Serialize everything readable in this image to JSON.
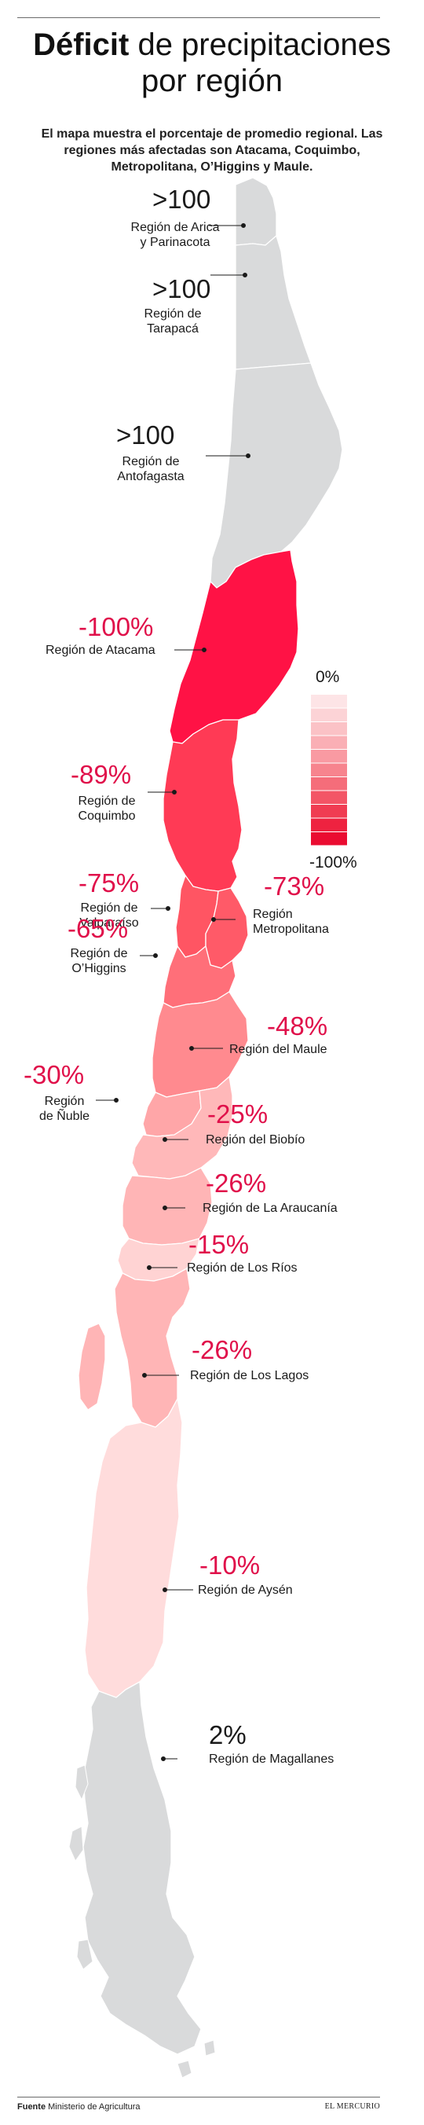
{
  "header": {
    "title_bold": "Déficit",
    "title_rest": " de precipitaciones",
    "title_line2": "por región",
    "intro": "El mapa muestra el porcentaje de promedio regional. Las regiones más afectadas son Atacama, Coquimbo, Metropolitana, O’Higgins y Maule."
  },
  "colors": {
    "gray": "#d9dadb",
    "red_100": "#ff1245",
    "red_89": "#ff3a55",
    "red_75": "#ff5563",
    "red_73": "#ff5a68",
    "red_65": "#ff6f79",
    "red_48": "#ff8a8f",
    "red_30": "#ffa6a8",
    "red_26": "#ffb5b6",
    "red_25": "#ffb8b9",
    "red_15": "#ffd3d3",
    "red_10": "#ffdcdc",
    "accent_text": "#e0104a"
  },
  "legend": {
    "top_label": "0%",
    "bottom_label": "-100%",
    "steps": [
      "#fde4e6",
      "#fcd3d6",
      "#fbc2c6",
      "#faafb5",
      "#f99aa2",
      "#f7848e",
      "#f56d7a",
      "#f35566",
      "#f03c52",
      "#ee2240",
      "#ea0c31"
    ]
  },
  "regions": [
    {
      "id": "arica",
      "value": ">100",
      "name_lines": [
        "Región de Arica",
        "y Parinacota"
      ]
    },
    {
      "id": "tarapaca",
      "value": ">100",
      "name_lines": [
        "Región de",
        "Tarapacá"
      ]
    },
    {
      "id": "antofagasta",
      "value": ">100",
      "name_lines": [
        "Región de",
        "Antofagasta"
      ]
    },
    {
      "id": "atacama",
      "value": "-100%",
      "name_lines": [
        "Región de Atacama"
      ]
    },
    {
      "id": "coquimbo",
      "value": "-89%",
      "name_lines": [
        "Región de",
        "Coquimbo"
      ]
    },
    {
      "id": "valparaiso",
      "value": "-75%",
      "name_lines": [
        "Región de",
        "Valparaíso"
      ]
    },
    {
      "id": "metropolitana",
      "value": "-73%",
      "name_lines": [
        "Región",
        "Metropolitana"
      ]
    },
    {
      "id": "ohiggins",
      "value": "-65%",
      "name_lines": [
        "Región de",
        "O’Higgins"
      ]
    },
    {
      "id": "maule",
      "value": "-48%",
      "name_lines": [
        "Región del Maule"
      ]
    },
    {
      "id": "nuble",
      "value": "-30%",
      "name_lines": [
        "Región",
        "de Ñuble"
      ]
    },
    {
      "id": "biobio",
      "value": "-25%",
      "name_lines": [
        "Región del Biobío"
      ]
    },
    {
      "id": "araucania",
      "value": "-26%",
      "name_lines": [
        "Región de La Araucanía"
      ]
    },
    {
      "id": "losrios",
      "value": "-15%",
      "name_lines": [
        "Región de Los Ríos"
      ]
    },
    {
      "id": "loslagos",
      "value": "-26%",
      "name_lines": [
        "Región de Los Lagos"
      ]
    },
    {
      "id": "aysen",
      "value": "-10%",
      "name_lines": [
        "Región de Aysén"
      ]
    },
    {
      "id": "magallanes",
      "value": "2%",
      "name_lines": [
        "Región de Magallanes"
      ]
    }
  ],
  "footer": {
    "source_label": "Fuente",
    "source_text": " Ministerio de Agricultura",
    "brand": "EL MERCURIO"
  }
}
